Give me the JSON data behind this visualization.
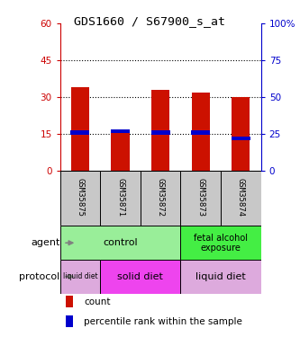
{
  "title": "GDS1660 / S67900_s_at",
  "samples": [
    "GSM35875",
    "GSM35871",
    "GSM35872",
    "GSM35873",
    "GSM35874"
  ],
  "count_values": [
    34,
    17,
    33,
    32,
    30
  ],
  "percentile_values": [
    26,
    27,
    26,
    26,
    22
  ],
  "ylim_left": [
    0,
    60
  ],
  "ylim_right": [
    0,
    100
  ],
  "yticks_left": [
    0,
    15,
    30,
    45,
    60
  ],
  "yticks_right": [
    0,
    25,
    50,
    75,
    100
  ],
  "ytick_labels_left": [
    "0",
    "15",
    "30",
    "45",
    "60"
  ],
  "ytick_labels_right": [
    "0",
    "25",
    "50",
    "75",
    "100%"
  ],
  "left_color": "#cc0000",
  "right_color": "#0000cc",
  "bar_color_red": "#cc1100",
  "bar_color_blue": "#0000cc",
  "agent_row_label": "agent",
  "protocol_row_label": "protocol",
  "legend_count_label": "count",
  "legend_pct_label": "percentile rank within the sample",
  "sample_bg": "#c8c8c8",
  "control_color": "#99ee99",
  "fetal_color": "#44ee44",
  "liquid_color": "#ddaadd",
  "solid_color": "#ee44ee"
}
